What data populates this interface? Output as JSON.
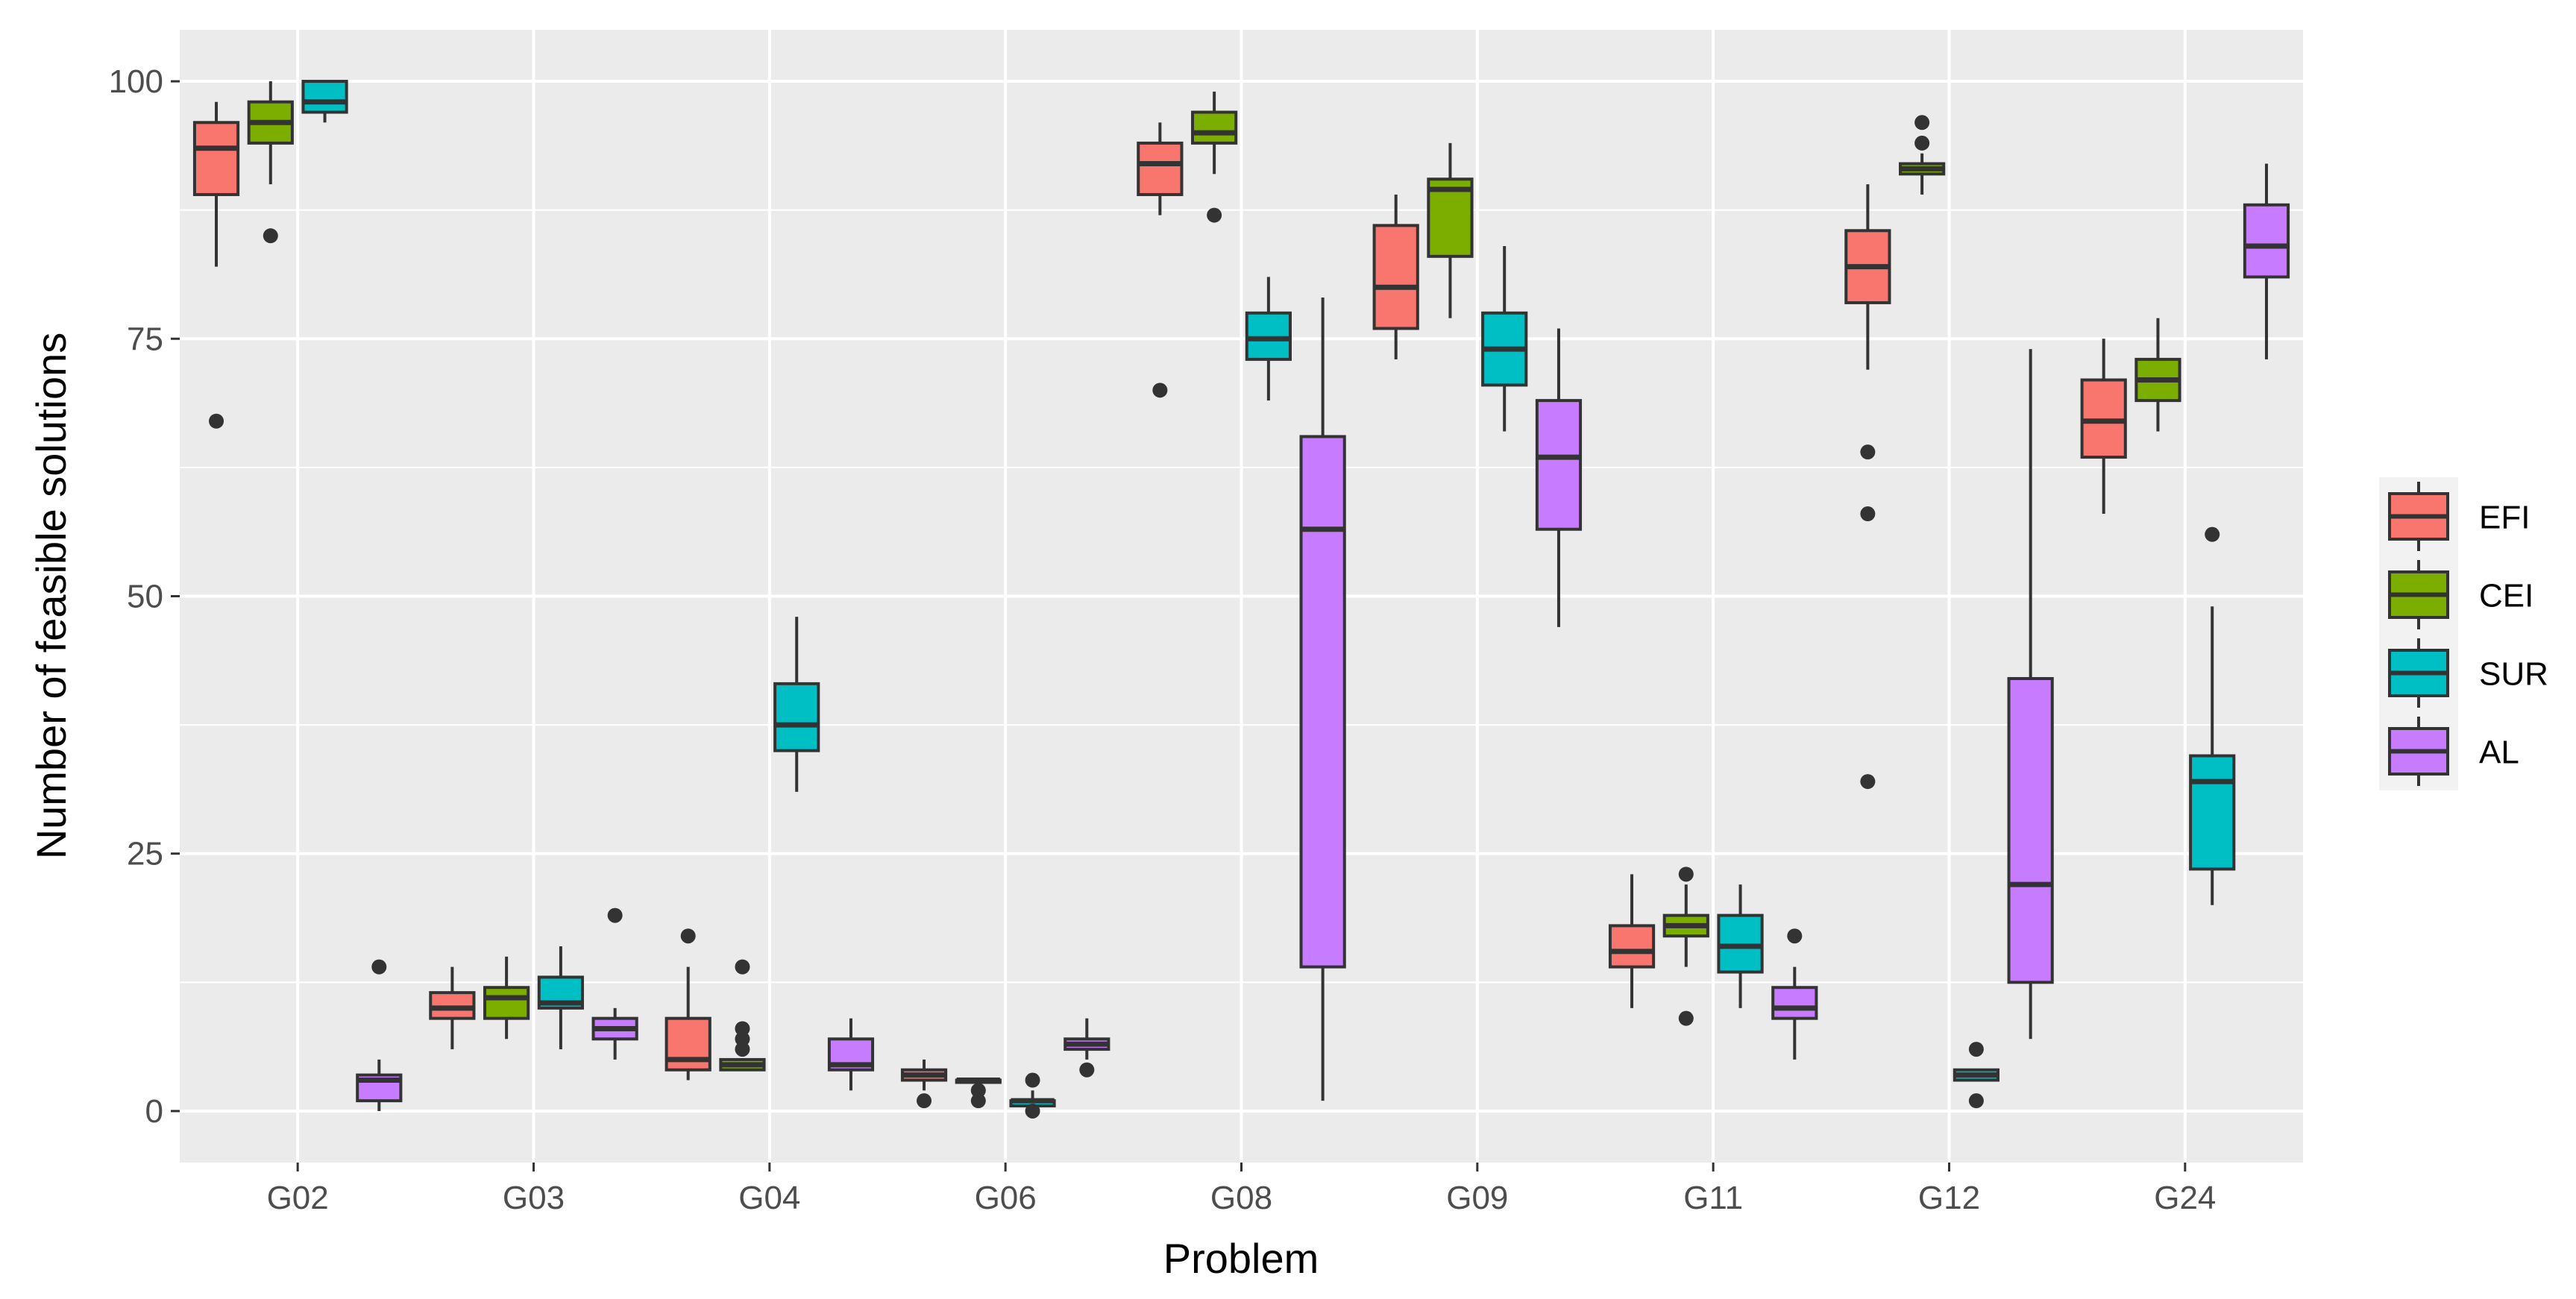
{
  "chart_data": {
    "type": "boxplot",
    "title": "",
    "xlabel": "Problem",
    "ylabel": "Number of feasible solutions",
    "ylim": [
      -5,
      105
    ],
    "y_ticks": [
      0,
      25,
      50,
      75,
      100
    ],
    "grid": true,
    "legend": {
      "position": "right",
      "title": "",
      "entries": [
        {
          "name": "EFI",
          "color": "#F8766D"
        },
        {
          "name": "CEI",
          "color": "#7CAE00"
        },
        {
          "name": "SUR",
          "color": "#00BFC4"
        },
        {
          "name": "AL",
          "color": "#C77CFF"
        }
      ]
    },
    "categories": [
      "G02",
      "G03",
      "G04",
      "G06",
      "G08",
      "G09",
      "G11",
      "G12",
      "G24"
    ],
    "series": [
      {
        "name": "EFI",
        "color": "#F8766D",
        "boxes": [
          {
            "min": 82,
            "q1": 89,
            "median": 93.5,
            "q3": 96,
            "max": 98,
            "outliers": [
              67
            ]
          },
          {
            "min": 6,
            "q1": 9,
            "median": 10,
            "q3": 11.5,
            "max": 14,
            "outliers": []
          },
          {
            "min": 3,
            "q1": 4,
            "median": 5,
            "q3": 9,
            "max": 14,
            "outliers": [
              17
            ]
          },
          {
            "min": 2,
            "q1": 3,
            "median": 3.5,
            "q3": 4,
            "max": 5,
            "outliers": [
              1
            ]
          },
          {
            "min": 87,
            "q1": 89,
            "median": 92,
            "q3": 94,
            "max": 96,
            "outliers": [
              70
            ]
          },
          {
            "min": 73,
            "q1": 76,
            "median": 80,
            "q3": 86,
            "max": 89,
            "outliers": []
          },
          {
            "min": 10,
            "q1": 14,
            "median": 15.5,
            "q3": 18,
            "max": 23,
            "outliers": []
          },
          {
            "min": 72,
            "q1": 78.5,
            "median": 82,
            "q3": 85.5,
            "max": 90,
            "outliers": [
              64,
              58,
              32
            ]
          },
          {
            "min": 58,
            "q1": 63.5,
            "median": 67,
            "q3": 71,
            "max": 75,
            "outliers": []
          }
        ]
      },
      {
        "name": "CEI",
        "color": "#7CAE00",
        "boxes": [
          {
            "min": 90,
            "q1": 94,
            "median": 96,
            "q3": 98,
            "max": 100,
            "outliers": [
              85
            ]
          },
          {
            "min": 7,
            "q1": 9,
            "median": 11,
            "q3": 12,
            "max": 15,
            "outliers": []
          },
          {
            "min": 4,
            "q1": 4,
            "median": 4.5,
            "q3": 5,
            "max": 5,
            "outliers": [
              14,
              8,
              7,
              6
            ]
          },
          {
            "min": 3,
            "q1": 3,
            "median": 3,
            "q3": 3,
            "max": 3,
            "outliers": [
              2,
              1
            ]
          },
          {
            "min": 91,
            "q1": 94,
            "median": 95,
            "q3": 97,
            "max": 99,
            "outliers": [
              87
            ]
          },
          {
            "min": 77,
            "q1": 83,
            "median": 89.5,
            "q3": 90.5,
            "max": 94,
            "outliers": []
          },
          {
            "min": 14,
            "q1": 17,
            "median": 18,
            "q3": 19,
            "max": 22,
            "outliers": [
              23,
              9
            ]
          },
          {
            "min": 89,
            "q1": 91,
            "median": 91.5,
            "q3": 92,
            "max": 93,
            "outliers": [
              96,
              94
            ]
          },
          {
            "min": 66,
            "q1": 69,
            "median": 71,
            "q3": 73,
            "max": 77,
            "outliers": []
          }
        ]
      },
      {
        "name": "SUR",
        "color": "#00BFC4",
        "boxes": [
          {
            "min": 96,
            "q1": 97,
            "median": 98,
            "q3": 100,
            "max": 100,
            "outliers": []
          },
          {
            "min": 6,
            "q1": 10,
            "median": 10.5,
            "q3": 13,
            "max": 16,
            "outliers": []
          },
          {
            "min": 31,
            "q1": 35,
            "median": 37.5,
            "q3": 41.5,
            "max": 48,
            "outliers": []
          },
          {
            "min": 0.5,
            "q1": 0.5,
            "median": 1,
            "q3": 1,
            "max": 2,
            "outliers": [
              3,
              0
            ]
          },
          {
            "min": 69,
            "q1": 73,
            "median": 75,
            "q3": 77.5,
            "max": 81,
            "outliers": []
          },
          {
            "min": 66,
            "q1": 70.5,
            "median": 74,
            "q3": 77.5,
            "max": 84,
            "outliers": []
          },
          {
            "min": 10,
            "q1": 13.5,
            "median": 16,
            "q3": 19,
            "max": 22,
            "outliers": []
          },
          {
            "min": 3,
            "q1": 3,
            "median": 3.5,
            "q3": 4,
            "max": 4,
            "outliers": [
              6,
              1
            ]
          },
          {
            "min": 20,
            "q1": 23.5,
            "median": 32,
            "q3": 34.5,
            "max": 49,
            "outliers": [
              56
            ]
          }
        ]
      },
      {
        "name": "AL",
        "color": "#C77CFF",
        "boxes": [
          {
            "min": 0,
            "q1": 1,
            "median": 3,
            "q3": 3.5,
            "max": 5,
            "outliers": [
              14
            ]
          },
          {
            "min": 5,
            "q1": 7,
            "median": 8,
            "q3": 9,
            "max": 10,
            "outliers": [
              19
            ]
          },
          {
            "min": 2,
            "q1": 4,
            "median": 4.5,
            "q3": 7,
            "max": 9,
            "outliers": []
          },
          {
            "min": 5,
            "q1": 6,
            "median": 6.5,
            "q3": 7,
            "max": 9,
            "outliers": [
              4
            ]
          },
          {
            "min": 1,
            "q1": 14,
            "median": 56.5,
            "q3": 65.5,
            "max": 79,
            "outliers": []
          },
          {
            "min": 47,
            "q1": 56.5,
            "median": 63.5,
            "q3": 69,
            "max": 76,
            "outliers": []
          },
          {
            "min": 5,
            "q1": 9,
            "median": 10,
            "q3": 12,
            "max": 14,
            "outliers": [
              17
            ]
          },
          {
            "min": 7,
            "q1": 12.5,
            "median": 22,
            "q3": 42,
            "max": 74,
            "outliers": []
          },
          {
            "min": 73,
            "q1": 81,
            "median": 84,
            "q3": 88,
            "max": 92,
            "outliers": []
          }
        ]
      }
    ]
  }
}
